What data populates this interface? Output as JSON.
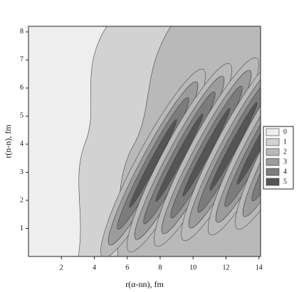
{
  "chart_data": {
    "type": "contour",
    "xlabel": "r(α-nn), fm",
    "ylabel": "r(n-n), fm",
    "xlim": [
      0,
      14.1
    ],
    "ylim": [
      0,
      8.2
    ],
    "xticks": [
      2,
      4,
      6,
      8,
      10,
      12,
      14
    ],
    "yticks": [
      1,
      2,
      3,
      4,
      5,
      6,
      7,
      8
    ],
    "levels": [
      0,
      1,
      2,
      3,
      4,
      5
    ],
    "level_colors": [
      "#eeeeee",
      "#d2d2d2",
      "#b9b9b9",
      "#9c9c9c",
      "#7c7c7c",
      "#555555"
    ],
    "legend": "right"
  }
}
